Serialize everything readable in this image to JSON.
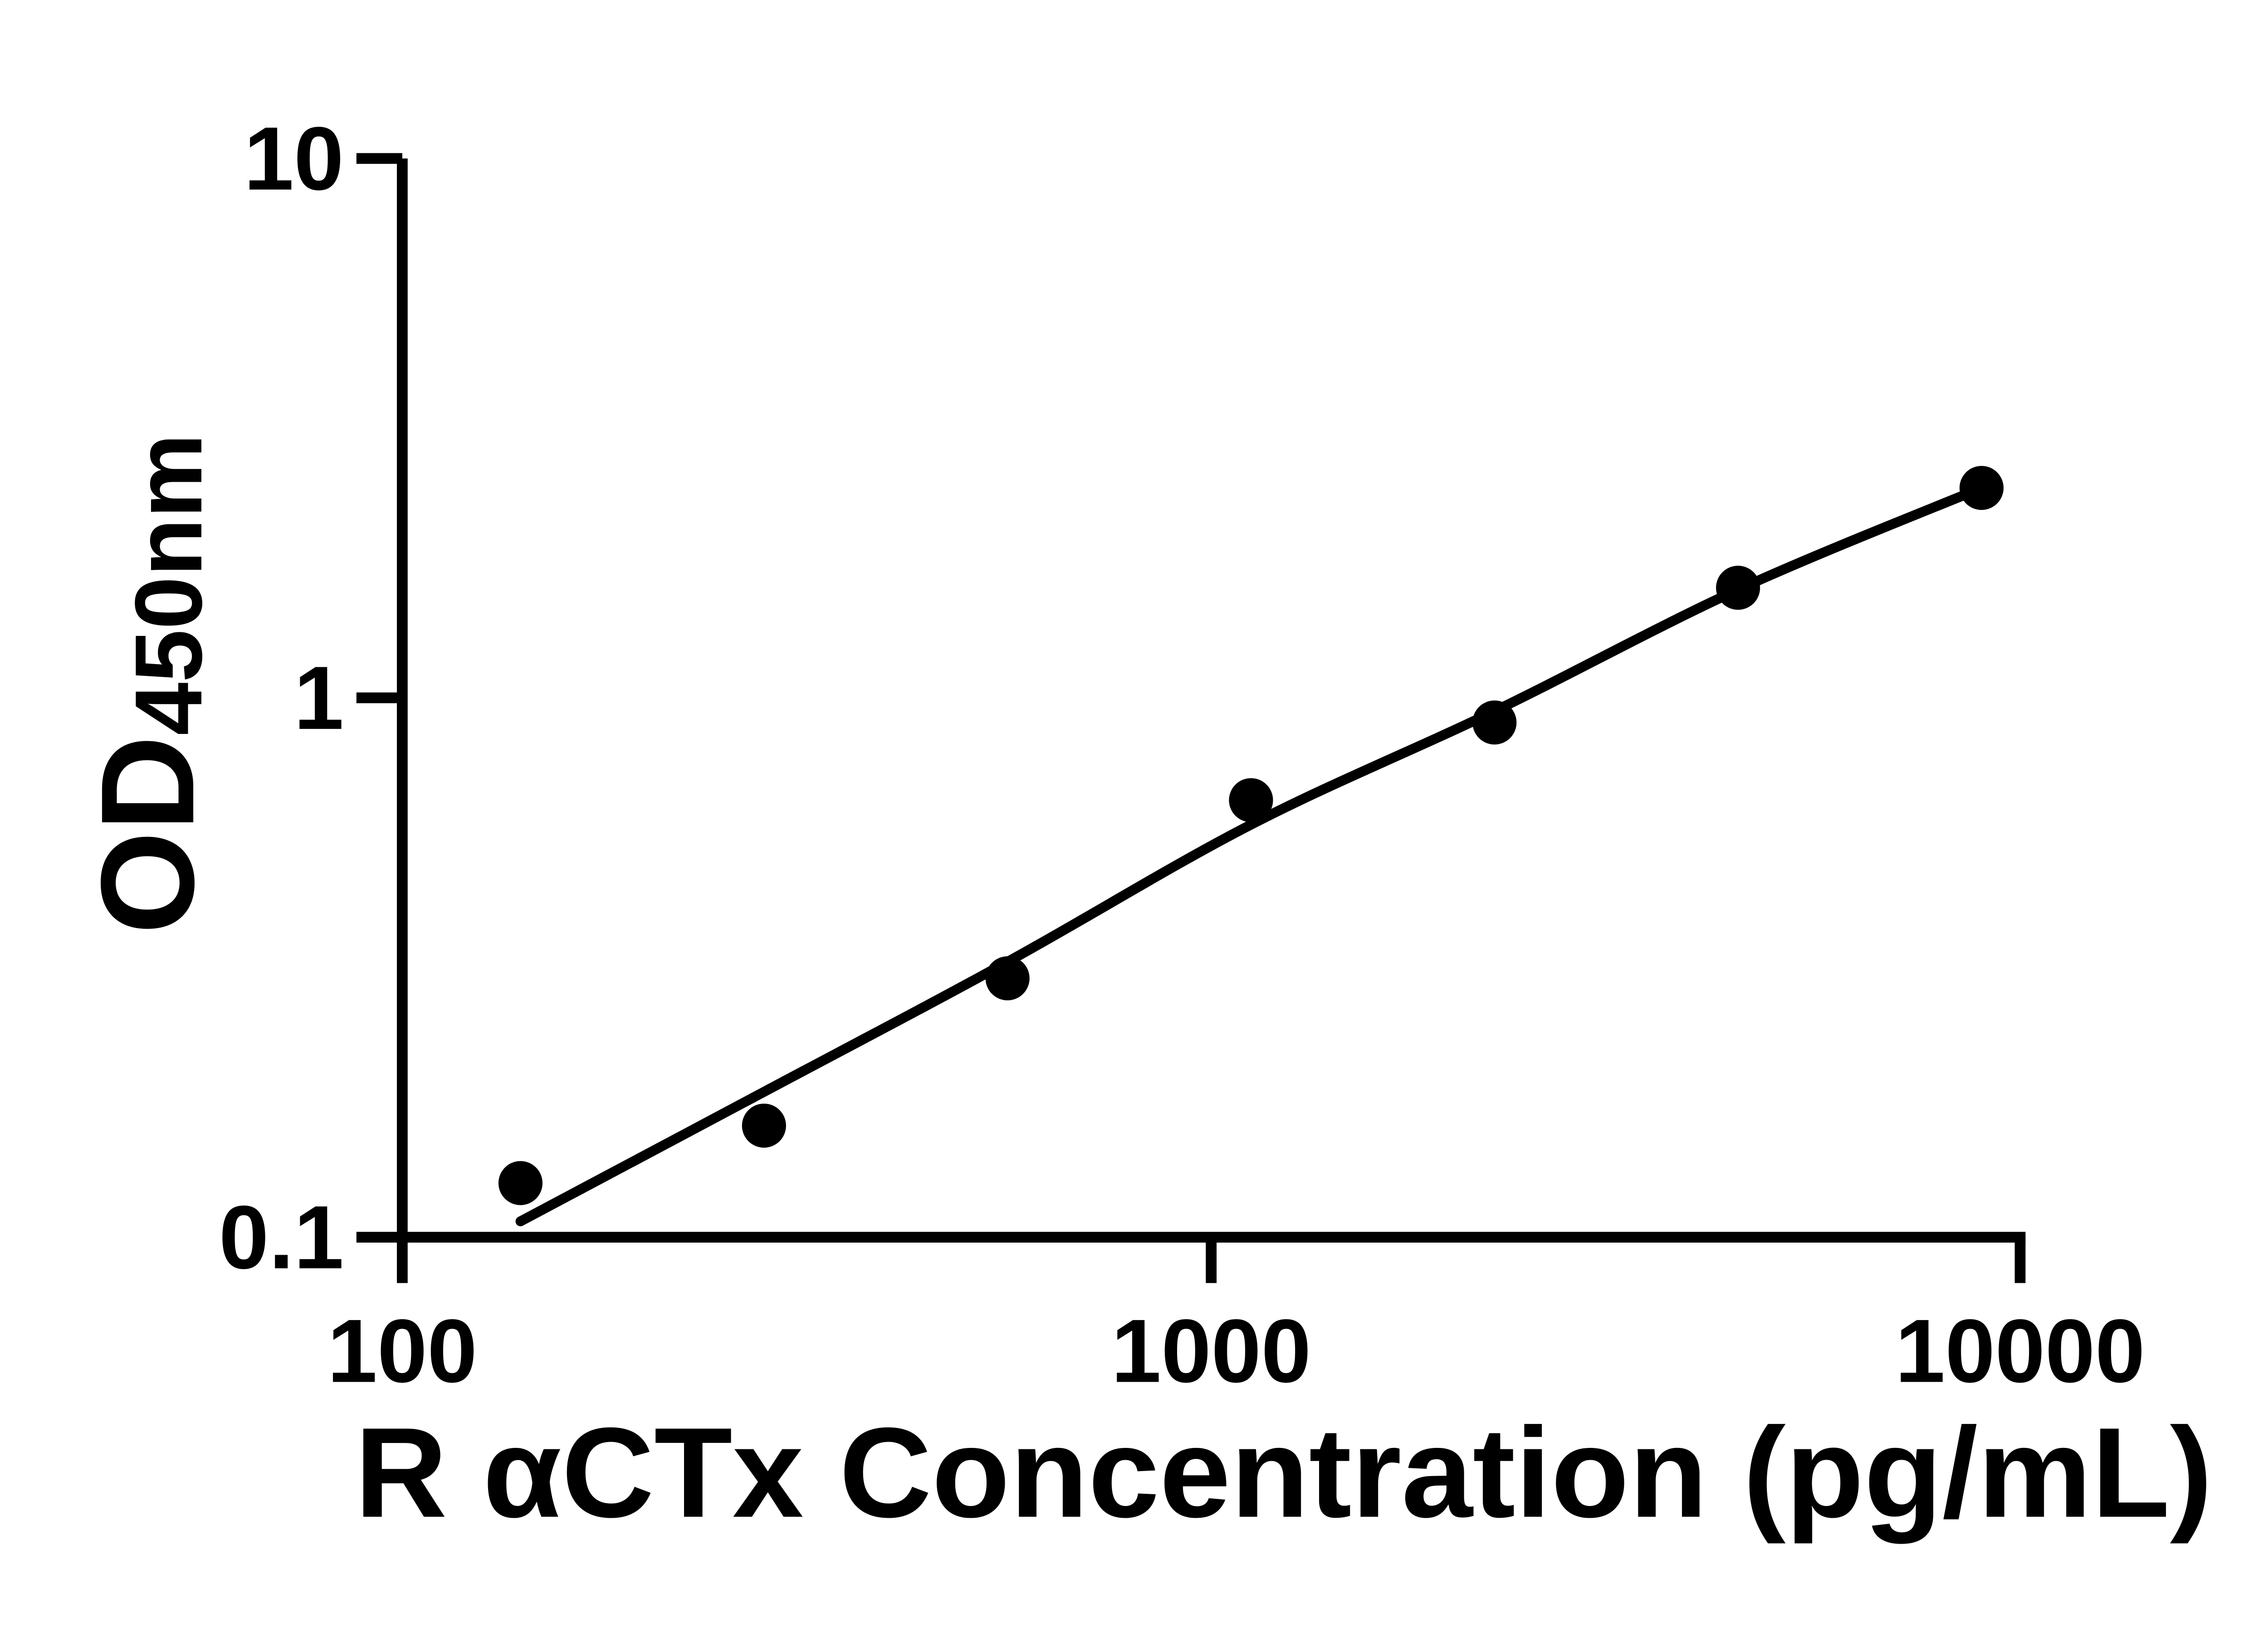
{
  "chart_data": {
    "type": "scatter",
    "title": "",
    "xlabel": "R αCTx Concentration (pg/mL)",
    "ylabel_main": "OD",
    "ylabel_sub": "450nm",
    "x_scale": "log",
    "y_scale": "log",
    "xlim": [
      100,
      10000
    ],
    "ylim": [
      0.1,
      10
    ],
    "x_ticks": [
      {
        "value": 100,
        "label": "100"
      },
      {
        "value": 1000,
        "label": "1000"
      },
      {
        "value": 10000,
        "label": "10000"
      }
    ],
    "y_ticks": [
      {
        "value": 0.1,
        "label": "0.1"
      },
      {
        "value": 1,
        "label": "1"
      },
      {
        "value": 10,
        "label": "10"
      }
    ],
    "grid": false,
    "legend": "none",
    "colors": {
      "ink": "#000000",
      "background": "#ffffff"
    },
    "series": [
      {
        "name": "standard-curve-points",
        "marker": "filled-circle",
        "points": [
          [
            140,
            0.126
          ],
          [
            280,
            0.161
          ],
          [
            560,
            0.302
          ],
          [
            1120,
            0.646
          ],
          [
            2240,
            0.9
          ],
          [
            4480,
            1.6
          ],
          [
            8960,
            2.45
          ]
        ]
      }
    ],
    "fit_line": {
      "name": "fit-line",
      "points": [
        [
          140,
          0.107
        ],
        [
          280,
          0.186
        ],
        [
          560,
          0.324
        ],
        [
          1120,
          0.582
        ],
        [
          2240,
          0.945
        ],
        [
          4480,
          1.587
        ],
        [
          8960,
          2.45
        ]
      ]
    }
  }
}
